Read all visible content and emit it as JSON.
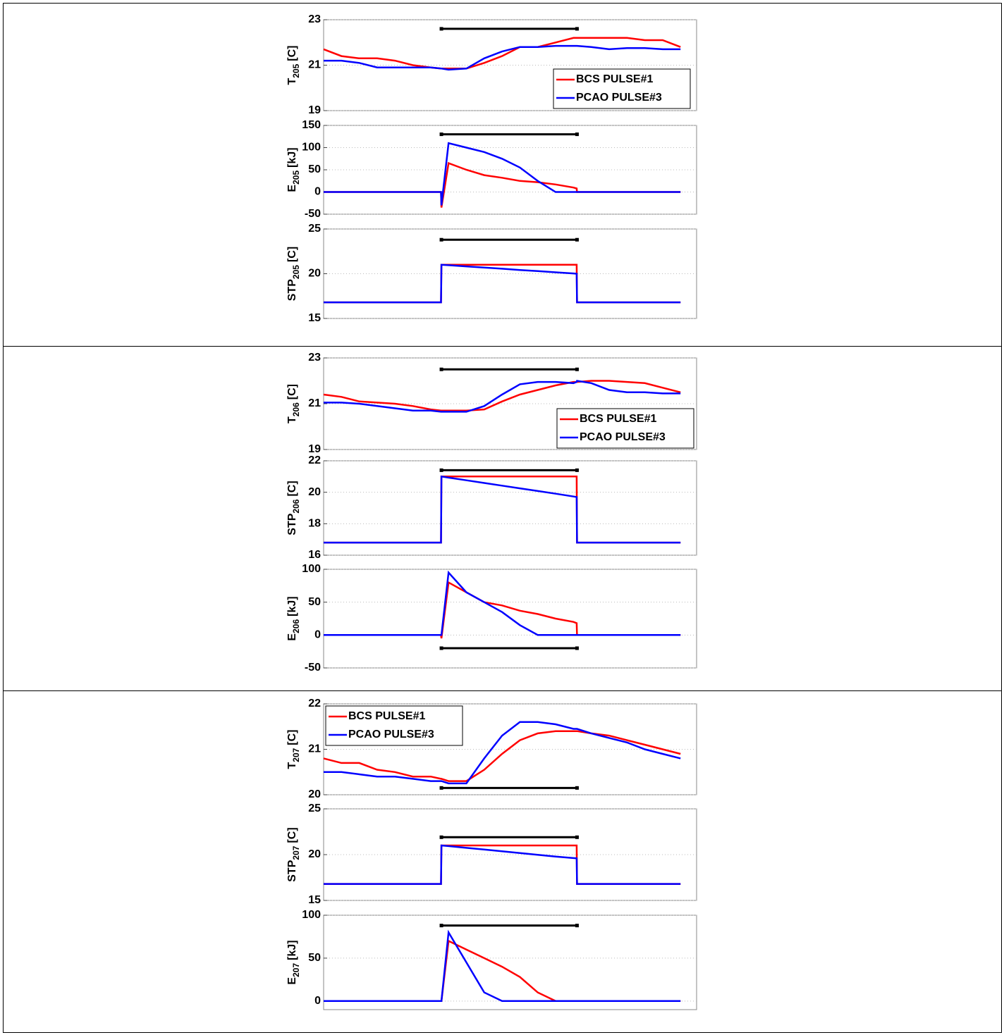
{
  "chart_data": [
    {
      "type": "line",
      "ylabel": {
        "main": "T",
        "sub": "205",
        "unit": "[C]"
      },
      "ylim": [
        19,
        23
      ],
      "yticks": [
        19,
        21,
        23
      ],
      "xlim": [
        0,
        104.5
      ],
      "grid": true,
      "legend": "lower right",
      "x": [
        0,
        5,
        10,
        15,
        20,
        25,
        30,
        32.9,
        33,
        35,
        40,
        45,
        50,
        55,
        60,
        65,
        70,
        70.9,
        71,
        75,
        80,
        85,
        90,
        95,
        100
      ],
      "interval": {
        "x": [
          33,
          71
        ],
        "y": 22.6
      },
      "series": [
        {
          "name": "BCS PULSE#1",
          "color": "#ff0000",
          "values": [
            21.7,
            21.4,
            21.3,
            21.3,
            21.2,
            21.0,
            20.9,
            20.85,
            20.85,
            20.85,
            20.85,
            21.1,
            21.4,
            21.8,
            21.8,
            22.0,
            22.2,
            22.2,
            22.2,
            22.2,
            22.2,
            22.2,
            22.1,
            22.1,
            21.8
          ]
        },
        {
          "name": "PCAO PULSE#3",
          "color": "#0000ff",
          "values": [
            21.2,
            21.2,
            21.1,
            20.9,
            20.9,
            20.9,
            20.9,
            20.85,
            20.85,
            20.8,
            20.85,
            21.3,
            21.6,
            21.8,
            21.8,
            21.85,
            21.85,
            21.85,
            21.85,
            21.8,
            21.7,
            21.75,
            21.75,
            21.7,
            21.7
          ]
        }
      ]
    },
    {
      "type": "line",
      "ylabel": {
        "main": "E",
        "sub": "205",
        "unit": "[kJ]"
      },
      "ylim": [
        -50,
        150
      ],
      "yticks": [
        -50,
        0,
        50,
        100,
        150
      ],
      "xlim": [
        0,
        104.5
      ],
      "grid": true,
      "x": [
        0,
        5,
        10,
        15,
        20,
        25,
        30,
        32.9,
        33,
        35,
        40,
        45,
        50,
        55,
        60,
        65,
        70,
        70.9,
        71,
        75,
        80,
        85,
        90,
        95,
        100
      ],
      "interval": {
        "x": [
          33,
          71
        ],
        "y": 130
      },
      "series": [
        {
          "name": "BCS PULSE#1",
          "color": "#ff0000",
          "values": [
            0,
            0,
            0,
            0,
            0,
            0,
            0,
            0,
            -35,
            65,
            50,
            38,
            32,
            25,
            22,
            17,
            10,
            8,
            0,
            0,
            0,
            0,
            0,
            0,
            0
          ]
        },
        {
          "name": "PCAO PULSE#3",
          "color": "#0000ff",
          "values": [
            0,
            0,
            0,
            0,
            0,
            0,
            0,
            0,
            -30,
            110,
            100,
            90,
            75,
            55,
            25,
            0,
            0,
            0,
            0,
            0,
            0,
            0,
            0,
            0,
            0
          ]
        }
      ]
    },
    {
      "type": "line",
      "ylabel": {
        "main": "STP",
        "sub": "205",
        "unit": "[C]"
      },
      "ylim": [
        15,
        25
      ],
      "yticks": [
        15,
        20,
        25
      ],
      "xlim": [
        0,
        104.5
      ],
      "grid": true,
      "x": [
        0,
        5,
        10,
        15,
        20,
        25,
        30,
        32.9,
        33,
        35,
        40,
        45,
        50,
        55,
        60,
        65,
        70,
        70.9,
        71,
        75,
        80,
        85,
        90,
        95,
        100
      ],
      "interval": {
        "x": [
          33,
          71
        ],
        "y": 23.8
      },
      "series": [
        {
          "name": "BCS PULSE#1",
          "color": "#ff0000",
          "values": [
            16.8,
            16.8,
            16.8,
            16.8,
            16.8,
            16.8,
            16.8,
            16.8,
            21,
            21,
            21,
            21,
            21,
            21,
            21,
            21,
            21,
            21,
            16.8,
            16.8,
            16.8,
            16.8,
            16.8,
            16.8,
            16.8
          ]
        },
        {
          "name": "PCAO PULSE#3",
          "color": "#0000ff",
          "values": [
            16.8,
            16.8,
            16.8,
            16.8,
            16.8,
            16.8,
            16.8,
            16.8,
            21,
            20.95,
            20.82,
            20.69,
            20.56,
            20.42,
            20.29,
            20.16,
            20.03,
            20.0,
            16.8,
            16.8,
            16.8,
            16.8,
            16.8,
            16.8,
            16.8
          ]
        }
      ]
    },
    {
      "type": "line",
      "ylabel": {
        "main": "T",
        "sub": "206",
        "unit": "[C]"
      },
      "ylim": [
        19,
        23
      ],
      "yticks": [
        19,
        21,
        23
      ],
      "xlim": [
        0,
        104.5
      ],
      "grid": true,
      "legend": "right",
      "x": [
        0,
        5,
        10,
        15,
        20,
        25,
        30,
        32.9,
        33,
        35,
        40,
        45,
        50,
        55,
        60,
        65,
        70,
        70.9,
        71,
        75,
        80,
        85,
        90,
        95,
        100
      ],
      "interval": {
        "x": [
          33,
          71
        ],
        "y": 22.5
      },
      "series": [
        {
          "name": "BCS PULSE#1",
          "color": "#ff0000",
          "values": [
            21.4,
            21.3,
            21.1,
            21.05,
            21.0,
            20.9,
            20.75,
            20.7,
            20.7,
            20.7,
            20.7,
            20.75,
            21.1,
            21.4,
            21.6,
            21.8,
            21.95,
            21.95,
            21.95,
            22.0,
            22.0,
            21.95,
            21.9,
            21.7,
            21.5
          ]
        },
        {
          "name": "PCAO PULSE#3",
          "color": "#0000ff",
          "values": [
            21.05,
            21.05,
            21.0,
            20.9,
            20.8,
            20.7,
            20.7,
            20.65,
            20.65,
            20.65,
            20.65,
            20.9,
            21.4,
            21.85,
            21.95,
            21.95,
            21.9,
            21.95,
            22.0,
            21.9,
            21.6,
            21.5,
            21.5,
            21.45,
            21.45
          ]
        }
      ]
    },
    {
      "type": "line",
      "ylabel": {
        "main": "STP",
        "sub": "206",
        "unit": "[C]"
      },
      "ylim": [
        16,
        22
      ],
      "yticks": [
        16,
        18,
        20,
        22
      ],
      "xlim": [
        0,
        104.5
      ],
      "grid": true,
      "x": [
        0,
        5,
        10,
        15,
        20,
        25,
        30,
        32.9,
        33,
        35,
        40,
        45,
        50,
        55,
        60,
        65,
        70,
        70.9,
        71,
        75,
        80,
        85,
        90,
        95,
        100
      ],
      "interval": {
        "x": [
          33,
          71
        ],
        "y": 21.4
      },
      "series": [
        {
          "name": "BCS PULSE#1",
          "color": "#ff0000",
          "values": [
            16.8,
            16.8,
            16.8,
            16.8,
            16.8,
            16.8,
            16.8,
            16.8,
            21,
            21,
            21,
            21,
            21,
            21,
            21,
            21,
            21,
            21,
            16.8,
            16.8,
            16.8,
            16.8,
            16.8,
            16.8,
            16.8
          ]
        },
        {
          "name": "PCAO PULSE#3",
          "color": "#0000ff",
          "values": [
            16.8,
            16.8,
            16.8,
            16.8,
            16.8,
            16.8,
            16.8,
            16.8,
            21,
            20.93,
            20.76,
            20.59,
            20.42,
            20.25,
            20.08,
            19.91,
            19.73,
            19.7,
            16.8,
            16.8,
            16.8,
            16.8,
            16.8,
            16.8,
            16.8
          ]
        }
      ]
    },
    {
      "type": "line",
      "ylabel": {
        "main": "E",
        "sub": "206",
        "unit": "[kJ]"
      },
      "ylim": [
        -50,
        100
      ],
      "yticks": [
        -50,
        0,
        50,
        100
      ],
      "xlim": [
        0,
        104.5
      ],
      "grid": true,
      "x": [
        0,
        5,
        10,
        15,
        20,
        25,
        30,
        32.9,
        33,
        35,
        40,
        45,
        50,
        55,
        60,
        65,
        70,
        70.9,
        71,
        75,
        80,
        85,
        90,
        95,
        100
      ],
      "interval": {
        "x": [
          33,
          71
        ],
        "y": -20
      },
      "series": [
        {
          "name": "BCS PULSE#1",
          "color": "#ff0000",
          "values": [
            0,
            0,
            0,
            0,
            0,
            0,
            0,
            0,
            -5,
            80,
            65,
            50,
            45,
            37,
            32,
            25,
            20,
            18,
            0,
            0,
            0,
            0,
            0,
            0,
            0
          ]
        },
        {
          "name": "PCAO PULSE#3",
          "color": "#0000ff",
          "values": [
            0,
            0,
            0,
            0,
            0,
            0,
            0,
            0,
            0,
            95,
            65,
            50,
            35,
            15,
            0,
            0,
            0,
            0,
            0,
            0,
            0,
            0,
            0,
            0,
            0
          ]
        }
      ]
    },
    {
      "type": "line",
      "ylabel": {
        "main": "T",
        "sub": "207",
        "unit": "[C]"
      },
      "ylim": [
        20,
        22
      ],
      "yticks": [
        20,
        21,
        22
      ],
      "xlim": [
        0,
        104.5
      ],
      "grid": true,
      "legend": "upper left",
      "x": [
        0,
        5,
        10,
        15,
        20,
        25,
        30,
        32.9,
        33,
        35,
        40,
        45,
        50,
        55,
        60,
        65,
        70,
        70.9,
        71,
        75,
        80,
        85,
        90,
        95,
        100
      ],
      "interval": {
        "x": [
          33,
          71
        ],
        "y": 20.15
      },
      "series": [
        {
          "name": "BCS PULSE#1",
          "color": "#ff0000",
          "values": [
            20.8,
            20.7,
            20.7,
            20.55,
            20.5,
            20.4,
            20.4,
            20.35,
            20.35,
            20.3,
            20.3,
            20.55,
            20.9,
            21.2,
            21.35,
            21.4,
            21.4,
            21.4,
            21.4,
            21.35,
            21.3,
            21.2,
            21.1,
            21.0,
            20.9
          ]
        },
        {
          "name": "PCAO PULSE#3",
          "color": "#0000ff",
          "values": [
            20.5,
            20.5,
            20.45,
            20.4,
            20.4,
            20.35,
            20.3,
            20.3,
            20.3,
            20.25,
            20.25,
            20.8,
            21.3,
            21.6,
            21.6,
            21.55,
            21.45,
            21.45,
            21.45,
            21.35,
            21.25,
            21.15,
            21.0,
            20.9,
            20.8
          ]
        }
      ]
    },
    {
      "type": "line",
      "ylabel": {
        "main": "STP",
        "sub": "207",
        "unit": "[C]"
      },
      "ylim": [
        15,
        25
      ],
      "yticks": [
        15,
        20,
        25
      ],
      "xlim": [
        0,
        104.5
      ],
      "grid": true,
      "x": [
        0,
        5,
        10,
        15,
        20,
        25,
        30,
        32.9,
        33,
        35,
        40,
        45,
        50,
        55,
        60,
        65,
        70,
        70.9,
        71,
        75,
        80,
        85,
        90,
        95,
        100
      ],
      "interval": {
        "x": [
          33,
          71
        ],
        "y": 21.9
      },
      "series": [
        {
          "name": "BCS PULSE#1",
          "color": "#ff0000",
          "values": [
            16.8,
            16.8,
            16.8,
            16.8,
            16.8,
            16.8,
            16.8,
            16.8,
            21,
            21,
            21,
            21,
            21,
            21,
            21,
            21,
            21,
            21,
            16.8,
            16.8,
            16.8,
            16.8,
            16.8,
            16.8,
            16.8
          ]
        },
        {
          "name": "PCAO PULSE#3",
          "color": "#0000ff",
          "values": [
            16.8,
            16.8,
            16.8,
            16.8,
            16.8,
            16.8,
            16.8,
            16.8,
            21,
            20.93,
            20.74,
            20.55,
            20.36,
            20.17,
            19.98,
            19.79,
            19.62,
            19.6,
            16.8,
            16.8,
            16.8,
            16.8,
            16.8,
            16.8,
            16.8
          ]
        }
      ]
    },
    {
      "type": "line",
      "ylabel": {
        "main": "E",
        "sub": "207",
        "unit": "[kJ]"
      },
      "ylim": [
        -10,
        100
      ],
      "yticks": [
        0,
        50,
        100
      ],
      "xlim": [
        0,
        104.5
      ],
      "grid": true,
      "x": [
        0,
        5,
        10,
        15,
        20,
        25,
        30,
        32.9,
        33,
        35,
        40,
        45,
        50,
        55,
        60,
        65,
        70,
        70.9,
        71,
        75,
        80,
        85,
        90,
        95,
        100
      ],
      "interval": {
        "x": [
          33,
          71
        ],
        "y": 88
      },
      "series": [
        {
          "name": "BCS PULSE#1",
          "color": "#ff0000",
          "values": [
            0,
            0,
            0,
            0,
            0,
            0,
            0,
            0,
            0,
            70,
            60,
            50,
            40,
            28,
            10,
            0,
            0,
            0,
            0,
            0,
            0,
            0,
            0,
            0,
            0
          ]
        },
        {
          "name": "PCAO PULSE#3",
          "color": "#0000ff",
          "values": [
            0,
            0,
            0,
            0,
            0,
            0,
            0,
            0,
            0,
            80,
            45,
            10,
            0,
            0,
            0,
            0,
            0,
            0,
            0,
            0,
            0,
            0,
            0,
            0,
            0
          ]
        }
      ]
    }
  ]
}
